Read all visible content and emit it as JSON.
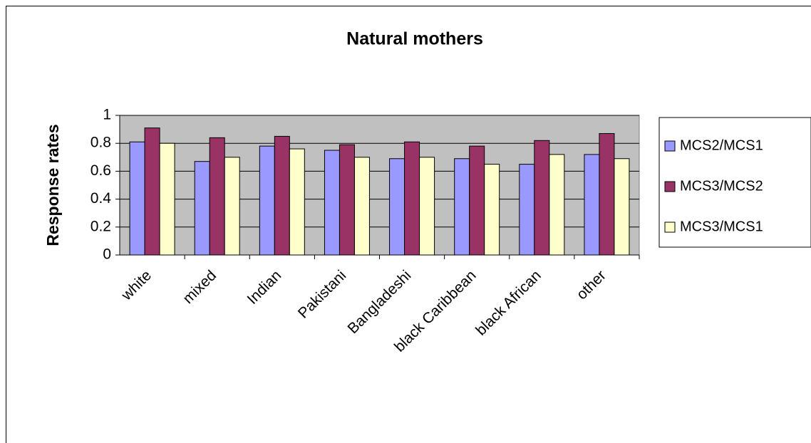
{
  "chart_data": {
    "type": "bar",
    "title": "Natural mothers",
    "y_label": "Response rates",
    "categories": [
      "white",
      "mixed",
      "Indian",
      "Pakistani",
      "Bangladeshi",
      "black Caribbean",
      "black African",
      "other"
    ],
    "series": [
      {
        "name": "MCS2/MCS1",
        "color": "#9999ff",
        "values": [
          0.81,
          0.67,
          0.78,
          0.75,
          0.69,
          0.69,
          0.65,
          0.72
        ]
      },
      {
        "name": "MCS3/MCS2",
        "color": "#993366",
        "values": [
          0.91,
          0.84,
          0.85,
          0.79,
          0.81,
          0.78,
          0.82,
          0.87
        ]
      },
      {
        "name": "MCS3/MCS1",
        "color": "#ffffcc",
        "values": [
          0.8,
          0.7,
          0.76,
          0.7,
          0.7,
          0.65,
          0.72,
          0.69
        ]
      }
    ],
    "ylim": [
      0,
      1
    ],
    "yticks": [
      0,
      0.2,
      0.4,
      0.6,
      0.8,
      1
    ],
    "grid": true,
    "legend": "right",
    "plot_background": "#c0c0c0"
  }
}
